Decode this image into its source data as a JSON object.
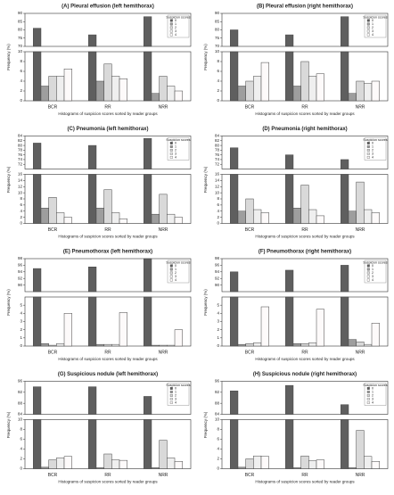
{
  "chart_data": [
    {
      "type": "bar",
      "title": "(A) Pleural effusion (left hemithorax)",
      "ylabel": "Frequency (%)",
      "xlabel": "Histograms of suspicion scores sorted by reader groups",
      "legend_title": "Suspicion scores",
      "legend": "upper right",
      "categories": [
        "BCR",
        "RR",
        "NRR"
      ],
      "series": [
        {
          "name": "0",
          "color": "#5f5f5f",
          "values": [
            81,
            77,
            88
          ]
        },
        {
          "name": "1",
          "color": "#9e9e9e",
          "values": [
            3,
            4,
            1.5
          ]
        },
        {
          "name": "2",
          "color": "#d9d9d9",
          "values": [
            5,
            7.5,
            5
          ]
        },
        {
          "name": "3",
          "color": "#efefef",
          "values": [
            5,
            5,
            3
          ]
        },
        {
          "name": "4",
          "color": "#fdfafa",
          "values": [
            6.5,
            4.5,
            2
          ]
        }
      ],
      "ylim": [
        0,
        10
      ],
      "yticks": [
        0,
        2,
        4,
        6,
        8,
        10
      ],
      "ylim_upper": [
        70,
        90
      ],
      "yticks_upper": [
        70,
        75,
        80,
        85,
        90
      ]
    },
    {
      "type": "bar",
      "title": "(B) Pleural effusion (right hemithorax)",
      "ylabel": "Frequency (%)",
      "xlabel": "Histograms of suspicion scores sorted by reader groups",
      "legend_title": "Suspicion scores",
      "legend": "upper right",
      "categories": [
        "BCR",
        "RR",
        "NRR"
      ],
      "series": [
        {
          "name": "0",
          "color": "#5f5f5f",
          "values": [
            80,
            77,
            88
          ]
        },
        {
          "name": "1",
          "color": "#9e9e9e",
          "values": [
            3,
            3,
            1.5
          ]
        },
        {
          "name": "2",
          "color": "#d9d9d9",
          "values": [
            4,
            8,
            4
          ]
        },
        {
          "name": "3",
          "color": "#efefef",
          "values": [
            5,
            5,
            3.5
          ]
        },
        {
          "name": "4",
          "color": "#fdfafa",
          "values": [
            7.8,
            5.5,
            4
          ]
        }
      ],
      "ylim": [
        0,
        10
      ],
      "yticks": [
        0,
        2,
        4,
        6,
        8,
        10
      ],
      "ylim_upper": [
        70,
        90
      ],
      "yticks_upper": [
        70,
        75,
        80,
        85,
        90
      ]
    },
    {
      "type": "bar",
      "title": "(C) Pneumonia (left hemithorax)",
      "ylabel": "Frequency (%)",
      "xlabel": "Histograms of suspicion scores sorted by reader groups",
      "legend_title": "Suspicion scores",
      "legend": "upper right",
      "categories": [
        "BCR",
        "RR",
        "NRR"
      ],
      "series": [
        {
          "name": "0",
          "color": "#5f5f5f",
          "values": [
            81,
            80,
            83
          ]
        },
        {
          "name": "1",
          "color": "#9e9e9e",
          "values": [
            5,
            5,
            3
          ]
        },
        {
          "name": "2",
          "color": "#d9d9d9",
          "values": [
            8.5,
            11,
            9.5
          ]
        },
        {
          "name": "3",
          "color": "#efefef",
          "values": [
            3.5,
            3.5,
            3
          ]
        },
        {
          "name": "4",
          "color": "#fdfafa",
          "values": [
            2,
            1.5,
            2
          ]
        }
      ],
      "ylim": [
        0,
        16
      ],
      "yticks": [
        0,
        2,
        4,
        6,
        8,
        10,
        12,
        14,
        16
      ],
      "ylim_upper": [
        70,
        84
      ],
      "yticks_upper": [
        72,
        74,
        76,
        78,
        80,
        82,
        84
      ]
    },
    {
      "type": "bar",
      "title": "(D) Pneumonia (right hemithorax)",
      "ylabel": "Frequency (%)",
      "xlabel": "Histograms of suspicion scores sorted by reader groups",
      "legend_title": "Suspicion scores",
      "legend": "upper right",
      "categories": [
        "BCR",
        "RR",
        "NRR"
      ],
      "series": [
        {
          "name": "0",
          "color": "#5f5f5f",
          "values": [
            79,
            76,
            74
          ]
        },
        {
          "name": "1",
          "color": "#9e9e9e",
          "values": [
            4,
            5,
            4
          ]
        },
        {
          "name": "2",
          "color": "#d9d9d9",
          "values": [
            8,
            12.5,
            13.5
          ]
        },
        {
          "name": "3",
          "color": "#efefef",
          "values": [
            4.5,
            4.5,
            4.5
          ]
        },
        {
          "name": "4",
          "color": "#fdfafa",
          "values": [
            3.5,
            2.5,
            3.5
          ]
        }
      ],
      "ylim": [
        0,
        16
      ],
      "yticks": [
        0,
        2,
        4,
        6,
        8,
        10,
        12,
        14,
        16
      ],
      "ylim_upper": [
        70,
        84
      ],
      "yticks_upper": [
        72,
        74,
        76,
        78,
        80,
        82,
        84
      ]
    },
    {
      "type": "bar",
      "title": "(E) Pneumothorax (left hemithorax)",
      "ylabel": "Frequency (%)",
      "xlabel": "Histograms of suspicion scores sorted by reader groups",
      "legend_title": "Suspicion scores",
      "legend": "upper right",
      "categories": [
        "BCR",
        "RR",
        "NRR"
      ],
      "series": [
        {
          "name": "0",
          "color": "#5f5f5f",
          "values": [
            95,
            95.5,
            98
          ]
        },
        {
          "name": "1",
          "color": "#9e9e9e",
          "values": [
            0.3,
            0.2,
            0.1
          ]
        },
        {
          "name": "2",
          "color": "#d9d9d9",
          "values": [
            0.1,
            0.2,
            0.1
          ]
        },
        {
          "name": "3",
          "color": "#efefef",
          "values": [
            0.3,
            0.2,
            0.1
          ]
        },
        {
          "name": "4",
          "color": "#fdfafa",
          "values": [
            4,
            4.1,
            2
          ]
        }
      ],
      "ylim": [
        0,
        6
      ],
      "yticks": [
        0,
        1,
        2,
        3,
        4,
        5
      ],
      "ylim_upper": [
        88,
        98
      ],
      "yticks_upper": [
        90,
        92,
        94,
        96,
        98
      ]
    },
    {
      "type": "bar",
      "title": "(F) Pneumothorax (right hemithorax)",
      "ylabel": "Frequency (%)",
      "xlabel": "Histograms of suspicion scores sorted by reader groups",
      "legend_title": "Suspicion scores",
      "legend": "upper right",
      "categories": [
        "BCR",
        "RR",
        "NRR"
      ],
      "series": [
        {
          "name": "0",
          "color": "#5f5f5f",
          "values": [
            94,
            94.5,
            96
          ]
        },
        {
          "name": "1",
          "color": "#9e9e9e",
          "values": [
            0.2,
            0.3,
            0.8
          ]
        },
        {
          "name": "2",
          "color": "#d9d9d9",
          "values": [
            0.3,
            0.3,
            0.5
          ]
        },
        {
          "name": "3",
          "color": "#efefef",
          "values": [
            0.4,
            0.4,
            0.2
          ]
        },
        {
          "name": "4",
          "color": "#fdfafa",
          "values": [
            4.8,
            4.5,
            2.8
          ]
        }
      ],
      "ylim": [
        0,
        6
      ],
      "yticks": [
        0,
        1,
        2,
        3,
        4,
        5
      ],
      "ylim_upper": [
        88,
        98
      ],
      "yticks_upper": [
        90,
        92,
        94,
        96,
        98
      ]
    },
    {
      "type": "bar",
      "title": "(G) Suspicious nodule (left hemithorax)",
      "ylabel": "Frequency (%)",
      "xlabel": "Histograms of suspicion scores sorted by reader groups",
      "legend_title": "Suspicion scores",
      "legend": "upper right",
      "categories": [
        "BCR",
        "RR",
        "NRR"
      ],
      "series": [
        {
          "name": "0",
          "color": "#5f5f5f",
          "values": [
            94,
            94,
            90.5
          ]
        },
        {
          "name": "1",
          "color": "#9e9e9e",
          "values": [
            0.3,
            0.2,
            0.2
          ]
        },
        {
          "name": "2",
          "color": "#d9d9d9",
          "values": [
            1.8,
            3,
            5.8
          ]
        },
        {
          "name": "3",
          "color": "#efefef",
          "values": [
            2.2,
            1.8,
            2.2
          ]
        },
        {
          "name": "4",
          "color": "#fdfafa",
          "values": [
            2.5,
            1.7,
            1.5
          ]
        }
      ],
      "ylim": [
        0,
        10
      ],
      "yticks": [
        0,
        2,
        4,
        6,
        8,
        10
      ],
      "ylim_upper": [
        84,
        96
      ],
      "yticks_upper": [
        84,
        88,
        92,
        96
      ]
    },
    {
      "type": "bar",
      "title": "(H) Suspicious nodule (right hemithorax)",
      "ylabel": "Frequency (%)",
      "xlabel": "Histograms of suspicion scores sorted by reader groups",
      "legend_title": "Suspicion scores",
      "legend": "upper right",
      "categories": [
        "BCR",
        "RR",
        "NRR"
      ],
      "series": [
        {
          "name": "0",
          "color": "#5f5f5f",
          "values": [
            92.5,
            94.5,
            87.5
          ]
        },
        {
          "name": "1",
          "color": "#9e9e9e",
          "values": [
            0.3,
            0.2,
            0.2
          ]
        },
        {
          "name": "2",
          "color": "#d9d9d9",
          "values": [
            2,
            2.6,
            7.8
          ]
        },
        {
          "name": "3",
          "color": "#efefef",
          "values": [
            2.6,
            1.6,
            2.5
          ]
        },
        {
          "name": "4",
          "color": "#fdfafa",
          "values": [
            2.5,
            1.8,
            1.5
          ]
        }
      ],
      "ylim": [
        0,
        10
      ],
      "yticks": [
        0,
        2,
        4,
        6,
        8,
        10
      ],
      "ylim_upper": [
        84,
        96
      ],
      "yticks_upper": [
        84,
        88,
        92,
        96
      ]
    }
  ]
}
